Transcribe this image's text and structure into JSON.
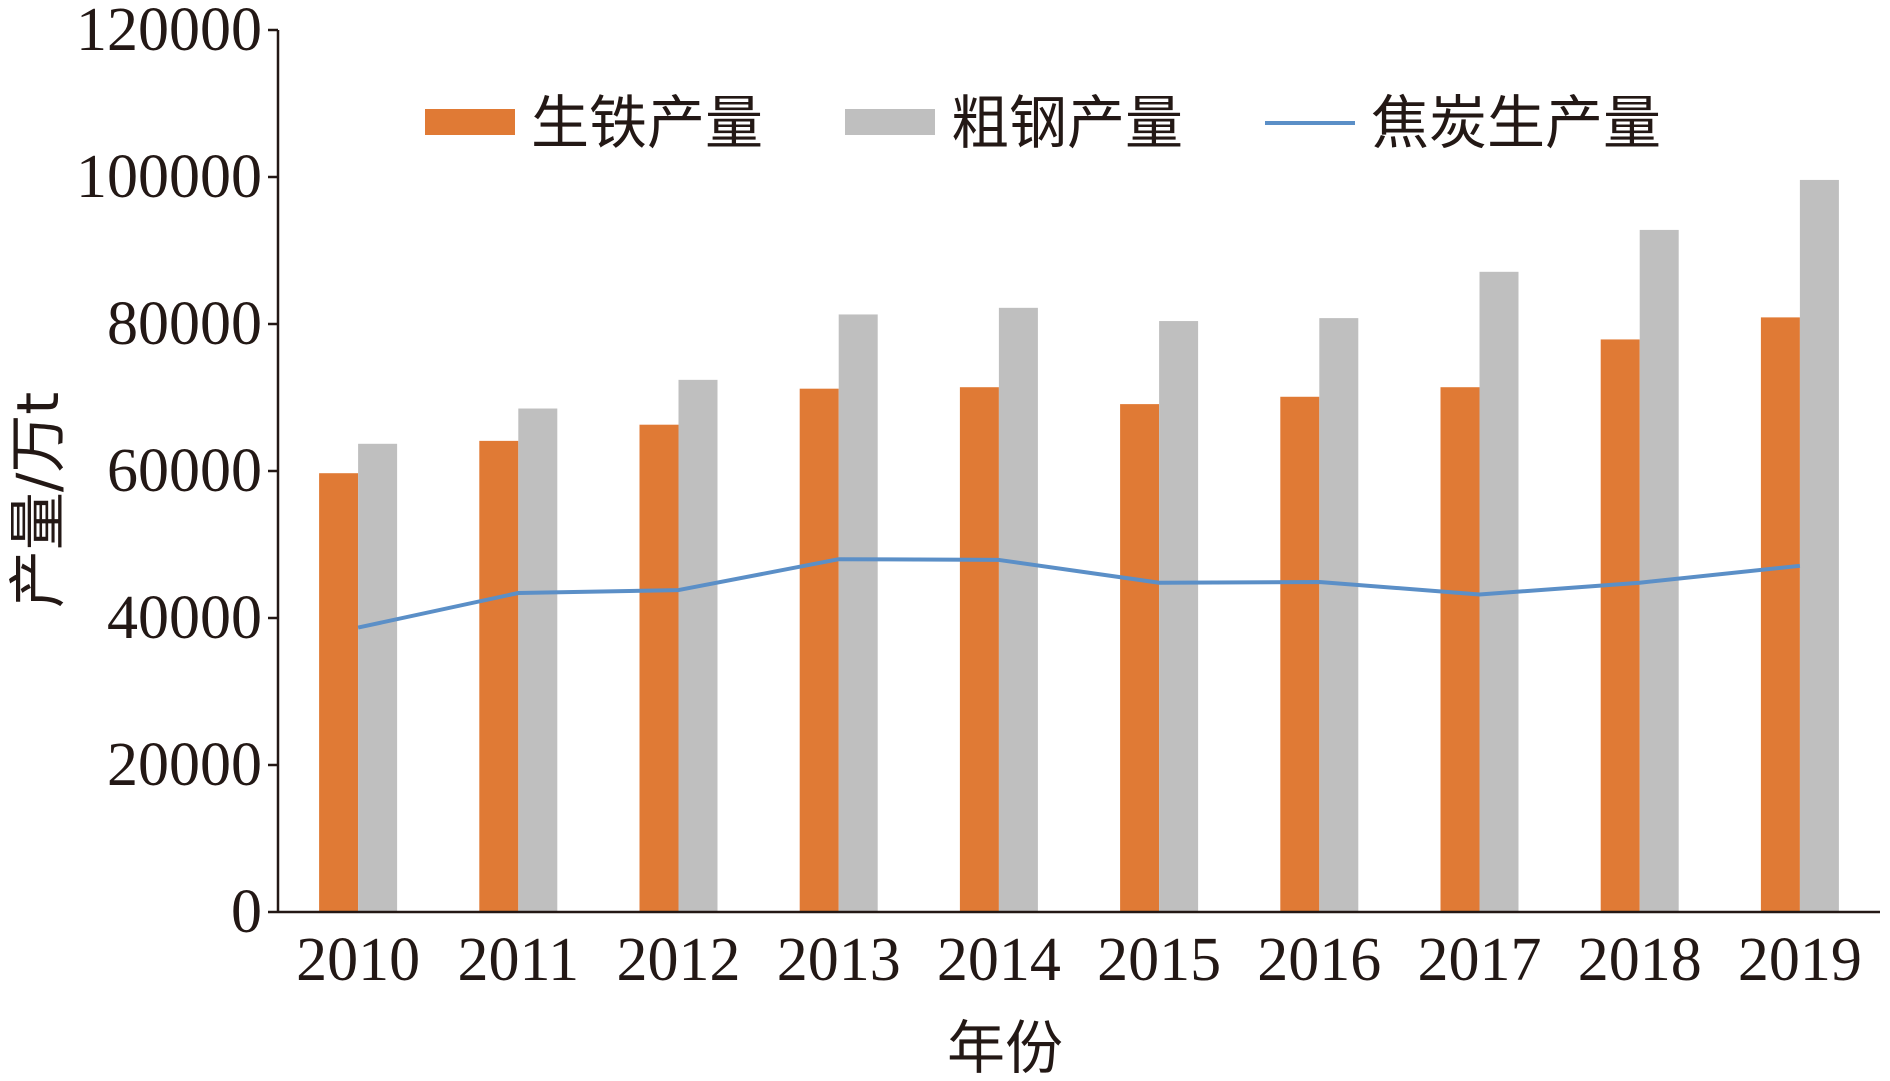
{
  "chart_data": {
    "type": "bar",
    "title": "",
    "xlabel": "年份",
    "ylabel": "产量/万t",
    "ylim": [
      0,
      120000
    ],
    "yticks": [
      "0",
      "20000",
      "40000",
      "60000",
      "80000",
      "100000",
      "120000"
    ],
    "categories": [
      "2010",
      "2011",
      "2012",
      "2013",
      "2014",
      "2015",
      "2016",
      "2017",
      "2018",
      "2019"
    ],
    "series": [
      {
        "name": "生铁产量",
        "type": "bar",
        "color": "#E07A35",
        "values": [
          59700,
          64100,
          66300,
          71200,
          71400,
          69100,
          70100,
          71400,
          77900,
          80900
        ]
      },
      {
        "name": "粗钢产量",
        "type": "bar",
        "color": "#BFBFBF",
        "values": [
          63700,
          68500,
          72400,
          81300,
          82200,
          80400,
          80800,
          87100,
          92800,
          99600
        ]
      },
      {
        "name": "焦炭生产量",
        "type": "line",
        "color": "#5B8FC7",
        "values": [
          38700,
          43400,
          43800,
          48000,
          47900,
          44800,
          44900,
          43200,
          44800,
          47100
        ]
      }
    ],
    "legend_position": "top",
    "grid": false
  }
}
